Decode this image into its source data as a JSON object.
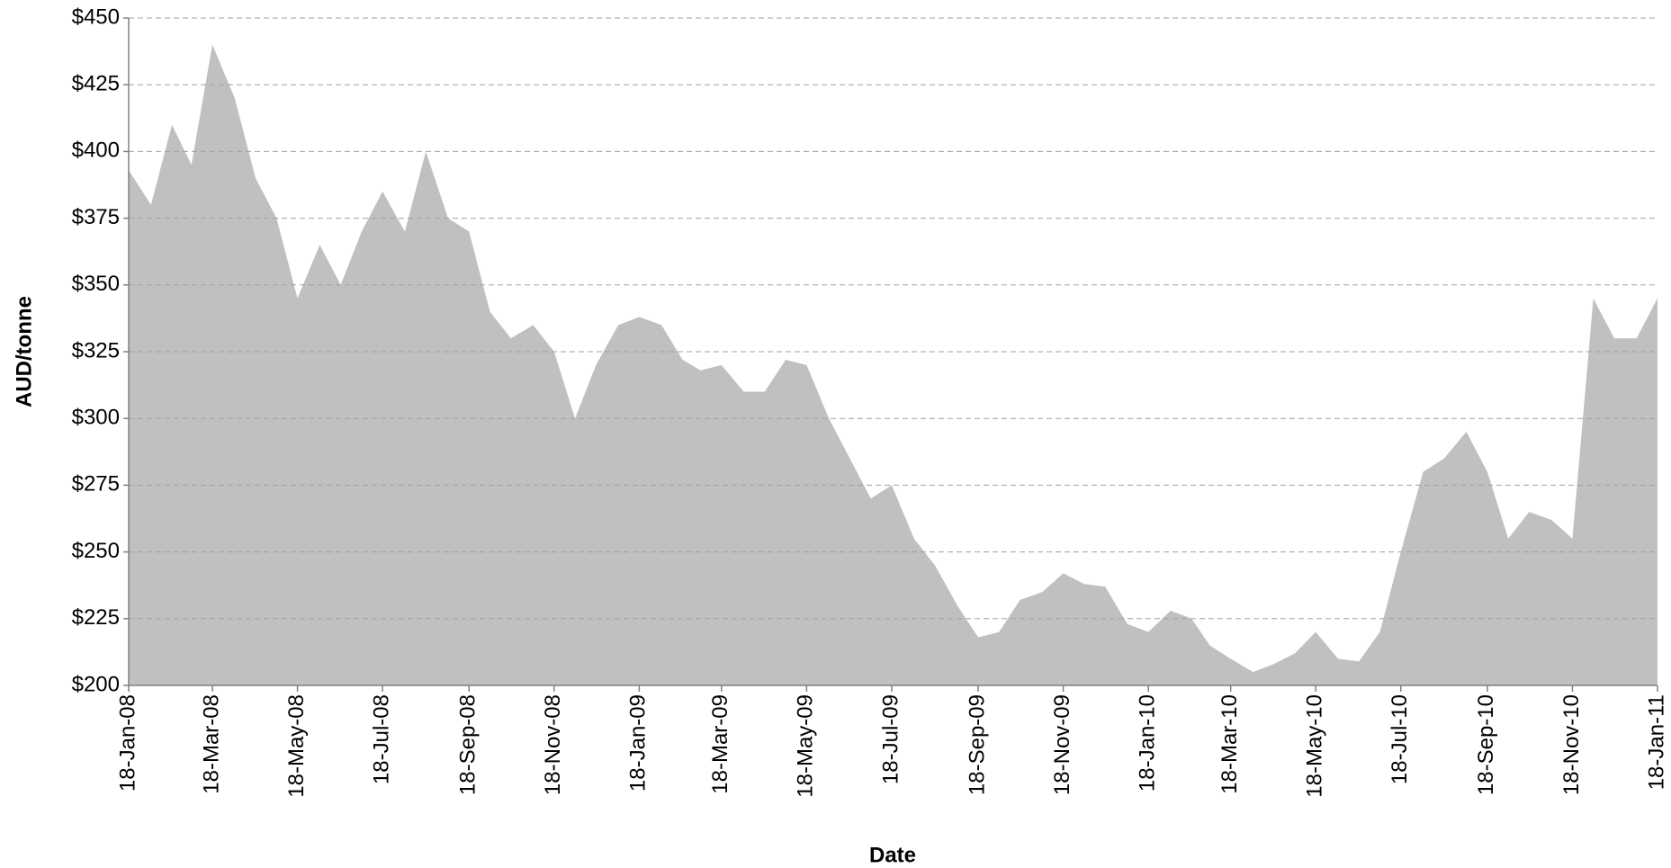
{
  "chart_data": {
    "type": "area",
    "x_label": "Date",
    "y_label": "AUD/tonne",
    "color": "#c0c0c0",
    "grid": true,
    "x": [
      "2008-01-18",
      "2008-02-03",
      "2008-02-18",
      "2008-03-03",
      "2008-03-18",
      "2008-04-03",
      "2008-04-18",
      "2008-05-03",
      "2008-05-18",
      "2008-06-03",
      "2008-06-18",
      "2008-07-03",
      "2008-07-18",
      "2008-08-03",
      "2008-08-18",
      "2008-09-03",
      "2008-09-18",
      "2008-10-03",
      "2008-10-18",
      "2008-11-03",
      "2008-11-18",
      "2008-12-03",
      "2008-12-18",
      "2009-01-03",
      "2009-01-18",
      "2009-02-03",
      "2009-02-18",
      "2009-03-03",
      "2009-03-18",
      "2009-04-03",
      "2009-04-18",
      "2009-05-03",
      "2009-05-18",
      "2009-06-03",
      "2009-06-18",
      "2009-07-03",
      "2009-07-18",
      "2009-08-03",
      "2009-08-18",
      "2009-09-03",
      "2009-09-18",
      "2009-10-03",
      "2009-10-18",
      "2009-11-03",
      "2009-11-18",
      "2009-12-03",
      "2009-12-18",
      "2010-01-03",
      "2010-01-18",
      "2010-02-03",
      "2010-02-18",
      "2010-03-03",
      "2010-03-18",
      "2010-04-03",
      "2010-04-18",
      "2010-05-03",
      "2010-05-18",
      "2010-06-03",
      "2010-06-18",
      "2010-07-03",
      "2010-07-18",
      "2010-08-03",
      "2010-08-18",
      "2010-09-03",
      "2010-09-18",
      "2010-10-03",
      "2010-10-18",
      "2010-11-03",
      "2010-11-18",
      "2010-12-03",
      "2010-12-18",
      "2011-01-03",
      "2011-01-18"
    ],
    "values": [
      393,
      380,
      410,
      395,
      440,
      420,
      390,
      375,
      345,
      365,
      350,
      370,
      385,
      370,
      400,
      375,
      370,
      340,
      330,
      335,
      325,
      300,
      320,
      335,
      338,
      335,
      322,
      318,
      320,
      310,
      310,
      322,
      320,
      300,
      285,
      270,
      275,
      255,
      245,
      230,
      218,
      220,
      232,
      235,
      242,
      238,
      237,
      223,
      220,
      228,
      225,
      215,
      210,
      205,
      208,
      212,
      220,
      210,
      209,
      220,
      250,
      280,
      285,
      295,
      280,
      255,
      265,
      262,
      255,
      345,
      330,
      330,
      345
    ],
    "xlim": [
      "2008-01-18",
      "2011-01-18"
    ],
    "xticks": [
      {
        "value": "2008-01-18",
        "label": "18-Jan-08"
      },
      {
        "value": "2008-03-18",
        "label": "18-Mar-08"
      },
      {
        "value": "2008-05-18",
        "label": "18-May-08"
      },
      {
        "value": "2008-07-18",
        "label": "18-Jul-08"
      },
      {
        "value": "2008-09-18",
        "label": "18-Sep-08"
      },
      {
        "value": "2008-11-18",
        "label": "18-Nov-08"
      },
      {
        "value": "2009-01-18",
        "label": "18-Jan-09"
      },
      {
        "value": "2009-03-18",
        "label": "18-Mar-09"
      },
      {
        "value": "2009-05-18",
        "label": "18-May-09"
      },
      {
        "value": "2009-07-18",
        "label": "18-Jul-09"
      },
      {
        "value": "2009-09-18",
        "label": "18-Sep-09"
      },
      {
        "value": "2009-11-18",
        "label": "18-Nov-09"
      },
      {
        "value": "2010-01-18",
        "label": "18-Jan-10"
      },
      {
        "value": "2010-03-18",
        "label": "18-Mar-10"
      },
      {
        "value": "2010-05-18",
        "label": "18-May-10"
      },
      {
        "value": "2010-07-18",
        "label": "18-Jul-10"
      },
      {
        "value": "2010-09-18",
        "label": "18-Sep-10"
      },
      {
        "value": "2010-11-18",
        "label": "18-Nov-10"
      },
      {
        "value": "2011-01-18",
        "label": "18-Jan-11"
      }
    ],
    "ylim": [
      200,
      450
    ],
    "yticks": [
      {
        "value": 200,
        "label": "$200"
      },
      {
        "value": 225,
        "label": "$225"
      },
      {
        "value": 250,
        "label": "$250"
      },
      {
        "value": 275,
        "label": "$275"
      },
      {
        "value": 300,
        "label": "$300"
      },
      {
        "value": 325,
        "label": "$325"
      },
      {
        "value": 350,
        "label": "$350"
      },
      {
        "value": 375,
        "label": "$375"
      },
      {
        "value": 400,
        "label": "$400"
      },
      {
        "value": 425,
        "label": "$425"
      },
      {
        "value": 450,
        "label": "$450"
      }
    ]
  }
}
